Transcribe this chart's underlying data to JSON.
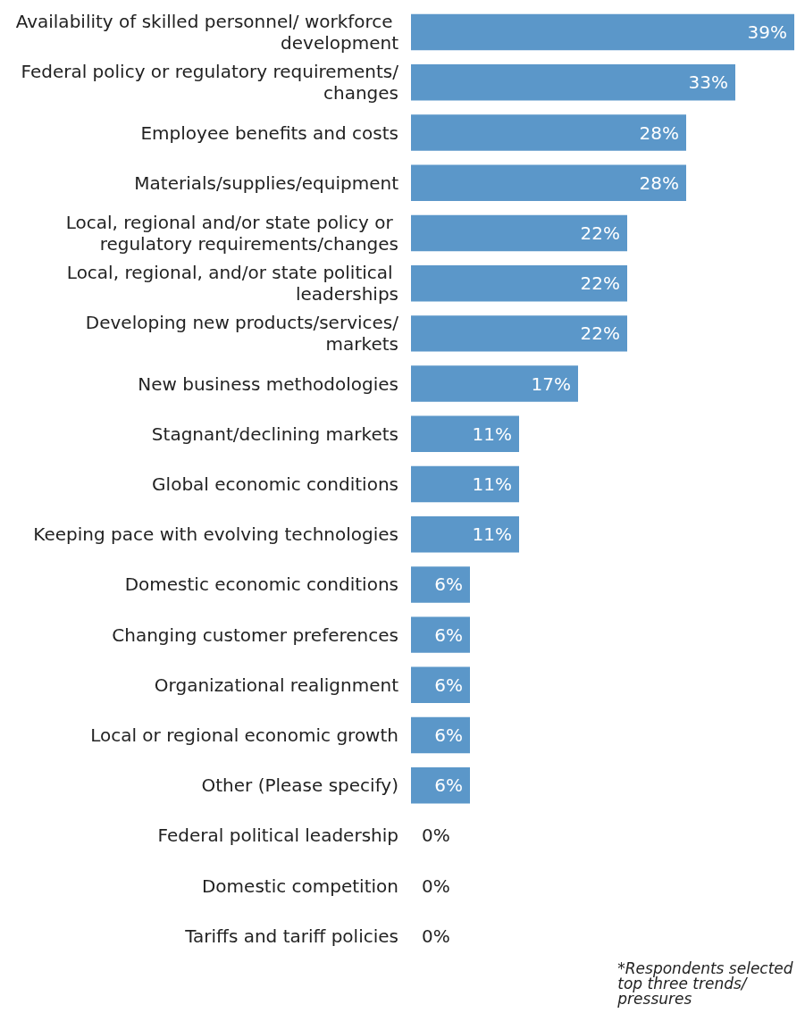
{
  "chart_data": {
    "type": "bar",
    "orientation": "horizontal",
    "categories": [
      "Availability of skilled personnel/ workforce development",
      "Federal policy or regulatory requirements/changes",
      "Employee benefits and costs",
      "Materials/supplies/equipment",
      "Local, regional and/or state policy or regulatory requirements/changes",
      "Local, regional, and/or state political leaderships",
      "Developing new products/services/markets",
      "New business methodologies",
      "Stagnant/declining markets",
      "Global economic conditions",
      "Keeping pace with evolving technologies",
      "Domestic economic conditions",
      "Changing customer preferences",
      "Organizational realignment",
      "Local or regional economic growth",
      "Other (Please specify)",
      "Federal political leadership",
      "Domestic competition",
      "Tariffs and tariff policies"
    ],
    "values": [
      39,
      33,
      28,
      28,
      22,
      22,
      22,
      17,
      11,
      11,
      11,
      6,
      6,
      6,
      6,
      6,
      0,
      0,
      0
    ],
    "value_labels": [
      "39%",
      "33%",
      "28%",
      "28%",
      "22%",
      "22%",
      "22%",
      "17%",
      "11%",
      "11%",
      "11%",
      "6%",
      "6%",
      "6%",
      "6%",
      "6%",
      "0%",
      "0%",
      "0%"
    ],
    "color": "#5b97c9",
    "annotations": [
      "*Respondents selected top three trends/pressures"
    ]
  }
}
